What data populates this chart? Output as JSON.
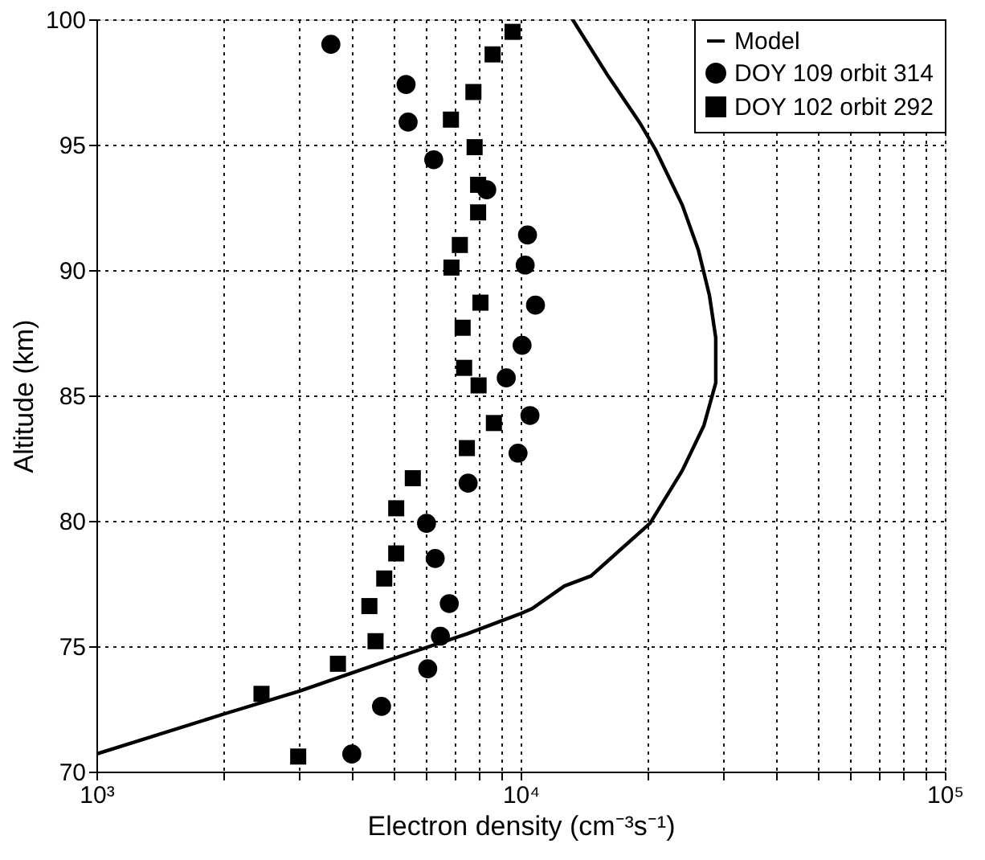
{
  "chart_data": {
    "type": "scatter",
    "xlabel": "Electron density (cm⁻³s⁻¹)",
    "ylabel": "Altitude (km)",
    "log": "x",
    "grid": true,
    "legend": "top right",
    "xlim": [
      1000,
      100000
    ],
    "ylim": [
      70,
      100
    ],
    "xticks": [
      {
        "value": 1000,
        "label": "10³"
      },
      {
        "value": 2000,
        "label": null
      },
      {
        "value": 3000,
        "label": null
      },
      {
        "value": 4000,
        "label": null
      },
      {
        "value": 5000,
        "label": null
      },
      {
        "value": 6000,
        "label": null
      },
      {
        "value": 7000,
        "label": null
      },
      {
        "value": 8000,
        "label": null
      },
      {
        "value": 9000,
        "label": null
      },
      {
        "value": 10000,
        "label": "10⁴"
      },
      {
        "value": 20000,
        "label": null
      },
      {
        "value": 30000,
        "label": null
      },
      {
        "value": 40000,
        "label": null
      },
      {
        "value": 50000,
        "label": null
      },
      {
        "value": 60000,
        "label": null
      },
      {
        "value": 70000,
        "label": null
      },
      {
        "value": 80000,
        "label": null
      },
      {
        "value": 90000,
        "label": null
      },
      {
        "value": 100000,
        "label": "10⁵"
      }
    ],
    "yticks": [
      70,
      75,
      80,
      85,
      90,
      95,
      100
    ],
    "series": [
      {
        "name": "Model",
        "type": "line",
        "color": "#000000",
        "marker": "none",
        "line_style": "solid",
        "x": [
          1000,
          2000,
          3000,
          5000,
          7500,
          10000,
          10640,
          12680,
          14650,
          20180,
          24040,
          27040,
          28840,
          28840,
          27860,
          26240,
          24040,
          20800,
          19050,
          15990,
          13250
        ],
        "values": [
          70.7,
          72.3,
          73.2,
          74.5,
          75.5,
          76.3,
          76.5,
          77.4,
          77.8,
          79.9,
          82.0,
          83.8,
          85.5,
          87.3,
          89.0,
          90.8,
          92.6,
          94.8,
          95.9,
          97.8,
          100
        ]
      },
      {
        "name": "DOY 109 orbit 314",
        "color": "#000000",
        "marker": "circle",
        "x": [
          3570,
          5370,
          5430,
          6240,
          8320,
          10380,
          10250,
          10840,
          10080,
          9250,
          10520,
          9860,
          7520,
          6000,
          6290,
          6790,
          6470,
          6040,
          4700,
          4000
        ],
        "values": [
          99.0,
          97.4,
          95.9,
          94.4,
          93.2,
          91.4,
          90.2,
          88.6,
          87.0,
          85.7,
          84.2,
          82.7,
          81.5,
          79.9,
          78.5,
          76.7,
          75.4,
          74.1,
          72.6,
          70.7
        ]
      },
      {
        "name": "DOY 102 orbit 292",
        "color": "#000000",
        "marker": "square",
        "x": [
          9570,
          8590,
          7740,
          6850,
          7790,
          7940,
          7940,
          7190,
          6870,
          8040,
          7300,
          7360,
          7960,
          8650,
          7470,
          5570,
          5090,
          5090,
          4770,
          4400,
          4550,
          3710,
          2450,
          2990
        ],
        "values": [
          99.5,
          98.6,
          97.1,
          96.0,
          94.9,
          93.4,
          92.3,
          91.0,
          90.1,
          88.7,
          87.7,
          86.1,
          85.4,
          83.9,
          82.9,
          81.7,
          80.5,
          78.7,
          77.7,
          76.6,
          75.2,
          74.3,
          73.1,
          70.6
        ]
      }
    ]
  }
}
